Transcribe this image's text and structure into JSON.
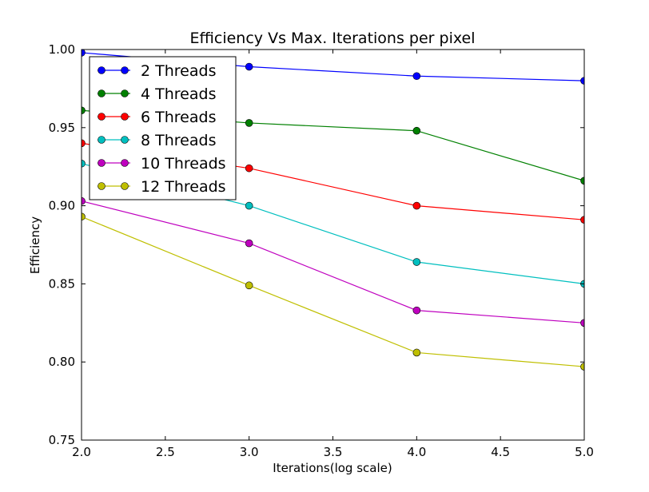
{
  "chart_data": {
    "type": "line",
    "title": "Efficiency Vs Max. Iterations per pixel",
    "xlabel": "Iterations(log scale)",
    "ylabel": "Efficiency",
    "xlim": [
      2.0,
      5.0
    ],
    "ylim": [
      0.75,
      1.0
    ],
    "x_ticks": [
      "2.0",
      "2.5",
      "3.0",
      "3.5",
      "4.0",
      "4.5",
      "5.0"
    ],
    "y_ticks": [
      "0.75",
      "0.80",
      "0.85",
      "0.90",
      "0.95",
      "1.00"
    ],
    "grid": false,
    "legend_position": "top-left",
    "x": [
      2.0,
      3.0,
      4.0,
      5.0
    ],
    "series": [
      {
        "name": "2 Threads",
        "color": "#0000ff",
        "values": [
          0.998,
          0.989,
          0.983,
          0.98
        ]
      },
      {
        "name": "4 Threads",
        "color": "#008000",
        "values": [
          0.961,
          0.953,
          0.948,
          0.916
        ]
      },
      {
        "name": "6 Threads",
        "color": "#ff0000",
        "values": [
          0.94,
          0.924,
          0.9,
          0.891
        ]
      },
      {
        "name": "8 Threads",
        "color": "#00bfbf",
        "values": [
          0.927,
          0.9,
          0.864,
          0.85
        ]
      },
      {
        "name": "10 Threads",
        "color": "#bf00bf",
        "values": [
          0.903,
          0.876,
          0.833,
          0.825
        ]
      },
      {
        "name": "12 Threads",
        "color": "#bfbf00",
        "values": [
          0.893,
          0.849,
          0.806,
          0.797
        ]
      }
    ]
  }
}
